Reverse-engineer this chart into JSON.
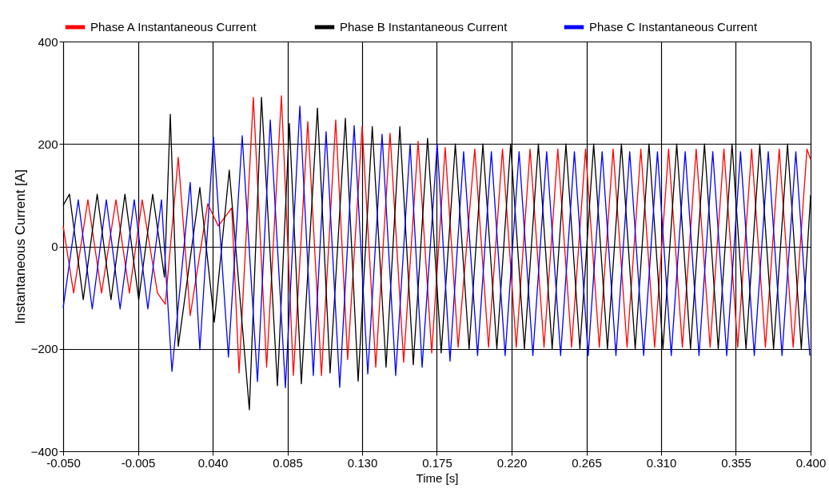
{
  "chart_data": {
    "type": "line",
    "xlabel": "Time [s]",
    "ylabel": "Instantaneous Current [A]",
    "xlim": [
      -0.05,
      0.4
    ],
    "xticks": [
      {
        "value": -0.05,
        "label": "-0.050"
      },
      {
        "value": -0.005,
        "label": "-0.005"
      },
      {
        "value": 0.04,
        "label": "0.040"
      },
      {
        "value": 0.085,
        "label": "0.085"
      },
      {
        "value": 0.13,
        "label": "0.130"
      },
      {
        "value": 0.175,
        "label": "0.175"
      },
      {
        "value": 0.22,
        "label": "0.220"
      },
      {
        "value": 0.265,
        "label": "0.265"
      },
      {
        "value": 0.31,
        "label": "0.310"
      },
      {
        "value": 0.355,
        "label": "0.355"
      },
      {
        "value": 0.4,
        "label": "0.400"
      }
    ],
    "ylim": [
      -400,
      400
    ],
    "yticks": [
      -400,
      -200,
      0,
      200,
      400
    ],
    "grid": true,
    "legend": "top",
    "series": [
      {
        "name": "Phase A Instantaneous Current",
        "color": "#ff0000",
        "x": [
          -0.05,
          -0.0437,
          -0.0351,
          -0.0269,
          -0.0182,
          -0.0101,
          -0.0024,
          0.0068,
          0.0115,
          0.0193,
          0.0265,
          0.037,
          0.0434,
          0.0515,
          0.0559,
          0.0645,
          0.0725,
          0.0814,
          0.0886,
          0.0973,
          0.1055,
          0.1141,
          0.1213,
          0.13,
          0.1382,
          0.1468,
          0.155,
          0.1637,
          0.1719,
          0.18,
          0.1878,
          0.1978,
          0.2061,
          0.2145,
          0.2228,
          0.2311,
          0.2395,
          0.2478,
          0.2561,
          0.2645,
          0.2728,
          0.2811,
          0.2895,
          0.2978,
          0.3061,
          0.3145,
          0.3228,
          0.3311,
          0.3395,
          0.3478,
          0.3561,
          0.3645,
          0.3728,
          0.3811,
          0.3895,
          0.3978,
          0.4
        ],
        "values": [
          40,
          -91,
          91,
          -91,
          91,
          -91,
          91,
          -91,
          -113,
          174,
          -135,
          83,
          40,
          75,
          -247,
          291,
          -236,
          294,
          -252,
          244,
          -252,
          247,
          -221,
          234,
          -236,
          221,
          -226,
          205,
          -208,
          193,
          -197,
          190,
          -197,
          190,
          -197,
          190,
          -197,
          190,
          -197,
          190,
          -197,
          190,
          -197,
          190,
          -197,
          190,
          -197,
          190,
          -197,
          190,
          -197,
          190,
          -197,
          190,
          -197,
          190,
          170
        ]
      },
      {
        "name": "Phase B Instantaneous Current",
        "color": "#000000",
        "x": [
          -0.05,
          -0.0462,
          -0.0379,
          -0.0295,
          -0.0212,
          -0.0128,
          -0.0045,
          0.0039,
          0.011,
          0.0145,
          0.0193,
          0.0323,
          0.041,
          0.05,
          0.0621,
          0.0694,
          0.079,
          0.0862,
          0.0934,
          0.1031,
          0.1107,
          0.1199,
          0.1276,
          0.1361,
          0.1444,
          0.1527,
          0.1608,
          0.1694,
          0.1776,
          0.1861,
          0.1944,
          0.2027,
          0.2111,
          0.2194,
          0.2277,
          0.2361,
          0.2444,
          0.2527,
          0.2611,
          0.2694,
          0.2777,
          0.2861,
          0.2944,
          0.3027,
          0.3111,
          0.3194,
          0.3277,
          0.3361,
          0.3444,
          0.3527,
          0.3611,
          0.3694,
          0.3777,
          0.3861,
          0.3944,
          0.4
        ],
        "values": [
          80,
          102,
          -104,
          102,
          -104,
          102,
          -104,
          102,
          -60,
          258,
          -195,
          115,
          -148,
          149,
          -319,
          291,
          -272,
          240,
          -268,
          270,
          -247,
          250,
          -263,
          234,
          -236,
          234,
          -231,
          211,
          -208,
          200,
          -200,
          200,
          -200,
          200,
          -200,
          200,
          -200,
          200,
          -200,
          200,
          -200,
          200,
          -200,
          200,
          -200,
          200,
          -200,
          200,
          -200,
          200,
          -200,
          200,
          -200,
          200,
          -200,
          100
        ]
      },
      {
        "name": "Phase C Instantaneous Current",
        "color": "#0000ff",
        "x": [
          -0.05,
          -0.0409,
          -0.0325,
          -0.024,
          -0.0157,
          -0.0072,
          0.001,
          0.0092,
          0.0155,
          0.0265,
          0.0323,
          0.0405,
          0.0495,
          0.0578,
          0.067,
          0.0747,
          0.0838,
          0.0925,
          0.1006,
          0.1083,
          0.1165,
          0.1252,
          0.1334,
          0.142,
          0.1502,
          0.1589,
          0.1661,
          0.1752,
          0.1829,
          0.1911,
          0.1995,
          0.2078,
          0.2161,
          0.2245,
          0.2328,
          0.2411,
          0.2495,
          0.2578,
          0.2661,
          0.2745,
          0.2828,
          0.2911,
          0.2995,
          0.3078,
          0.3161,
          0.3245,
          0.3328,
          0.3411,
          0.3495,
          0.3578,
          0.3661,
          0.3745,
          0.3828,
          0.3911,
          0.3995
        ],
        "values": [
          -120,
          91,
          -122,
          91,
          -122,
          91,
          -122,
          91,
          -244,
          125,
          -202,
          213,
          -216,
          216,
          -264,
          247,
          -276,
          274,
          -252,
          224,
          -275,
          236,
          -249,
          219,
          -252,
          200,
          -236,
          200,
          -224,
          185,
          -213,
          185,
          -213,
          185,
          -213,
          185,
          -213,
          185,
          -213,
          185,
          -213,
          185,
          -213,
          185,
          -213,
          185,
          -213,
          185,
          -213,
          185,
          -213,
          185,
          -213,
          185,
          -213
        ]
      }
    ]
  }
}
